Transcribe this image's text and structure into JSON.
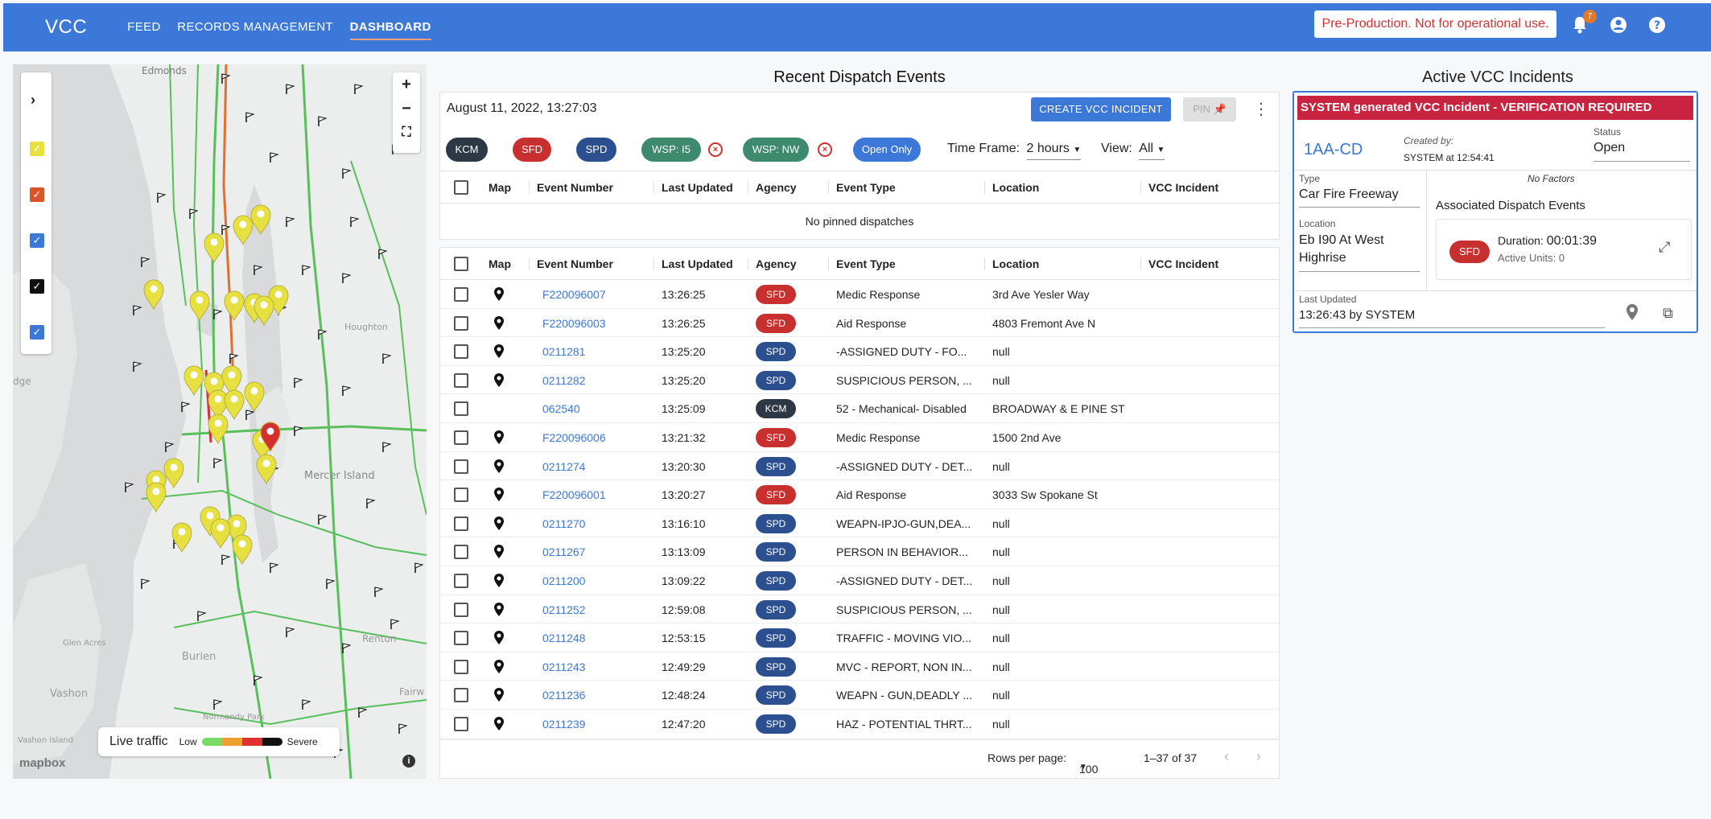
{
  "app": {
    "brand": "VCC",
    "nav": [
      "FEED",
      "RECORDS MANAGEMENT",
      "DASHBOARD"
    ],
    "active_nav": "DASHBOARD",
    "warning": "Pre-Production. Not for operational use.",
    "notifications": "7"
  },
  "colors": {
    "primary": "#3c78d8",
    "sfd": "#c8302f",
    "spd": "#2c4f8f",
    "kcm": "#2c3844",
    "wsp": "#3d8a6e",
    "alert": "#c8233f"
  },
  "map": {
    "zoom_in": "+",
    "zoom_out": "−",
    "place_labels": [
      "Edmonds",
      "Houghton",
      "Mercer Island",
      "Renton",
      "Burien",
      "Vashon",
      "Glen Acres",
      "Normandy Park",
      "Vashon Island",
      "Fairw",
      "dge"
    ],
    "traffic": {
      "label": "Live traffic",
      "low": "Low",
      "severe": "Severe"
    },
    "attribution": "mapbox",
    "layer_checkboxes": [
      "yellow",
      "red",
      "blue",
      "black",
      "blue"
    ]
  },
  "dispatch": {
    "title": "Recent Dispatch Events",
    "timestamp": "August 11, 2022, 13:27:03",
    "create_button": "CREATE VCC INCIDENT",
    "pin_button": "PIN",
    "chips": [
      "KCM",
      "SFD",
      "SPD",
      "WSP: I5",
      "WSP: NW",
      "Open Only"
    ],
    "timeframe_label": "Time Frame:",
    "timeframe_value": "2 hours",
    "view_label": "View:",
    "view_value": "All",
    "columns": [
      "Map",
      "Event Number",
      "Last Updated",
      "Agency",
      "Event Type",
      "Location",
      "VCC Incident"
    ],
    "no_pinned": "No pinned dispatches",
    "rows": [
      {
        "event": "F220096007",
        "updated": "13:26:25",
        "agency": "SFD",
        "type": "Medic Response",
        "location": "3rd Ave Yesler Way",
        "map": true
      },
      {
        "event": "F220096003",
        "updated": "13:26:25",
        "agency": "SFD",
        "type": "Aid Response",
        "location": "4803 Fremont Ave N",
        "map": true
      },
      {
        "event": "0211281",
        "updated": "13:25:20",
        "agency": "SPD",
        "type": "-ASSIGNED DUTY - FO...",
        "location": "null",
        "map": true
      },
      {
        "event": "0211282",
        "updated": "13:25:20",
        "agency": "SPD",
        "type": "SUSPICIOUS PERSON, ...",
        "location": "null",
        "map": true
      },
      {
        "event": "062540",
        "updated": "13:25:09",
        "agency": "KCM",
        "type": "52 - Mechanical- Disabled",
        "location": "BROADWAY & E PINE ST",
        "map": false
      },
      {
        "event": "F220096006",
        "updated": "13:21:32",
        "agency": "SFD",
        "type": "Medic Response",
        "location": "1500 2nd Ave",
        "map": true
      },
      {
        "event": "0211274",
        "updated": "13:20:30",
        "agency": "SPD",
        "type": "-ASSIGNED DUTY - DET...",
        "location": "null",
        "map": true
      },
      {
        "event": "F220096001",
        "updated": "13:20:27",
        "agency": "SFD",
        "type": "Aid Response",
        "location": "3033 Sw Spokane St",
        "map": true
      },
      {
        "event": "0211270",
        "updated": "13:16:10",
        "agency": "SPD",
        "type": "WEAPN-IPJO-GUN,DEA...",
        "location": "null",
        "map": true
      },
      {
        "event": "0211267",
        "updated": "13:13:09",
        "agency": "SPD",
        "type": "PERSON IN BEHAVIOR...",
        "location": "null",
        "map": true
      },
      {
        "event": "0211200",
        "updated": "13:09:22",
        "agency": "SPD",
        "type": "-ASSIGNED DUTY - DET...",
        "location": "null",
        "map": true
      },
      {
        "event": "0211252",
        "updated": "12:59:08",
        "agency": "SPD",
        "type": "SUSPICIOUS PERSON, ...",
        "location": "null",
        "map": true
      },
      {
        "event": "0211248",
        "updated": "12:53:15",
        "agency": "SPD",
        "type": "TRAFFIC - MOVING VIO...",
        "location": "null",
        "map": true
      },
      {
        "event": "0211243",
        "updated": "12:49:29",
        "agency": "SPD",
        "type": "MVC - REPORT, NON IN...",
        "location": "null",
        "map": true
      },
      {
        "event": "0211236",
        "updated": "12:48:24",
        "agency": "SPD",
        "type": "WEAPN - GUN,DEADLY ...",
        "location": "null",
        "map": true
      },
      {
        "event": "0211239",
        "updated": "12:47:20",
        "agency": "SPD",
        "type": "HAZ - POTENTIAL THRT...",
        "location": "null",
        "map": true
      }
    ],
    "pager": {
      "rows_per_page_label": "Rows per page:",
      "rows_per_page": "100",
      "range": "1–37 of 37"
    }
  },
  "incidents": {
    "title": "Active VCC Incidents",
    "banner": "SYSTEM generated VCC Incident - VERIFICATION REQUIRED",
    "id": "1AA-CD",
    "created_by_label": "Created by:",
    "created_by": "SYSTEM at 12:54:41",
    "status_label": "Status",
    "status": "Open",
    "type_label": "Type",
    "type": "Car Fire Freeway",
    "factors": "No Factors",
    "location_label": "Location",
    "location": "Eb I90 At West Highrise",
    "assoc_label": "Associated Dispatch Events",
    "assoc_agency": "SFD",
    "duration_label": "Duration:",
    "duration": "00:01:39",
    "active_units": "Active Units: 0",
    "last_updated_label": "Last Updated",
    "last_updated": "13:26:43 by  SYSTEM"
  }
}
